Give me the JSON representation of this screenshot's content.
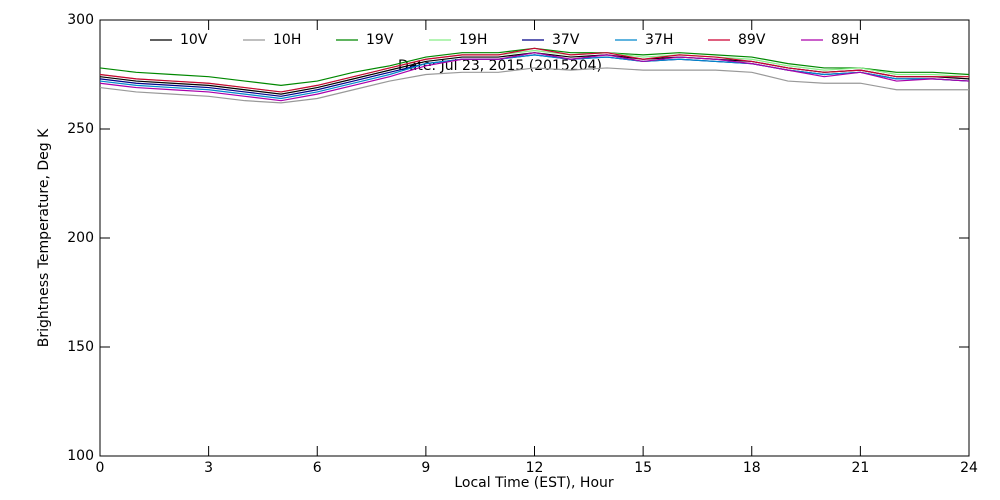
{
  "chart_data": {
    "type": "line",
    "title": "Date: Jul 23, 2015 (2015204)",
    "x_label": "Local Time (EST), Hour",
    "y_label": "Brightness Temperature, Deg K",
    "x": [
      0,
      1,
      2,
      3,
      4,
      5,
      6,
      7,
      8,
      9,
      10,
      11,
      12,
      13,
      14,
      15,
      16,
      17,
      18,
      19,
      20,
      21,
      22,
      23,
      24
    ],
    "series": [
      {
        "name": "10V",
        "color": "#000000",
        "values": [
          274,
          272,
          271,
          270,
          268,
          266,
          269,
          273,
          277,
          281,
          283,
          283,
          285,
          283,
          284,
          282,
          283,
          282,
          281,
          278,
          276,
          277,
          274,
          274,
          273
        ]
      },
      {
        "name": "10H",
        "color": "#999999",
        "values": [
          269,
          267,
          266,
          265,
          263,
          262,
          264,
          268,
          272,
          275,
          276,
          276,
          278,
          277,
          278,
          277,
          277,
          277,
          276,
          272,
          271,
          271,
          268,
          268,
          268
        ]
      },
      {
        "name": "19V",
        "color": "#008800",
        "values": [
          278,
          276,
          275,
          274,
          272,
          270,
          272,
          276,
          279,
          283,
          285,
          285,
          287,
          285,
          285,
          284,
          285,
          284,
          283,
          280,
          278,
          278,
          276,
          276,
          275
        ]
      },
      {
        "name": "19H",
        "color": "#88ee88",
        "values": [
          275,
          273,
          272,
          271,
          269,
          267,
          270,
          274,
          278,
          282,
          284,
          284,
          286,
          284,
          285,
          283,
          284,
          283,
          282,
          279,
          277,
          278,
          275,
          275,
          274
        ]
      },
      {
        "name": "37V",
        "color": "#000088",
        "values": [
          273,
          271,
          270,
          269,
          267,
          265,
          268,
          272,
          276,
          280,
          282,
          282,
          284,
          282,
          283,
          281,
          282,
          281,
          280,
          277,
          275,
          276,
          273,
          273,
          272
        ]
      },
      {
        "name": "37H",
        "color": "#0088cc",
        "values": [
          272,
          270,
          269,
          268,
          266,
          264,
          267,
          271,
          275,
          280,
          282,
          282,
          284,
          282,
          283,
          281,
          282,
          281,
          280,
          277,
          275,
          276,
          273,
          273,
          272
        ]
      },
      {
        "name": "89V",
        "color": "#cc0033",
        "values": [
          275,
          273,
          272,
          271,
          269,
          267,
          270,
          274,
          278,
          282,
          284,
          284,
          287,
          284,
          285,
          282,
          284,
          283,
          281,
          278,
          276,
          277,
          274,
          274,
          274
        ]
      },
      {
        "name": "89H",
        "color": "#aa00aa",
        "values": [
          271,
          269,
          268,
          267,
          265,
          263,
          266,
          270,
          274,
          279,
          282,
          282,
          285,
          282,
          284,
          281,
          283,
          282,
          280,
          277,
          274,
          276,
          272,
          273,
          272
        ]
      }
    ],
    "xlim": [
      0,
      24
    ],
    "xticks": [
      0,
      3,
      6,
      9,
      12,
      15,
      18,
      21,
      24
    ],
    "ylim": [
      100,
      300
    ],
    "yticks": [
      100,
      150,
      200,
      250,
      300
    ],
    "legend": "top"
  }
}
